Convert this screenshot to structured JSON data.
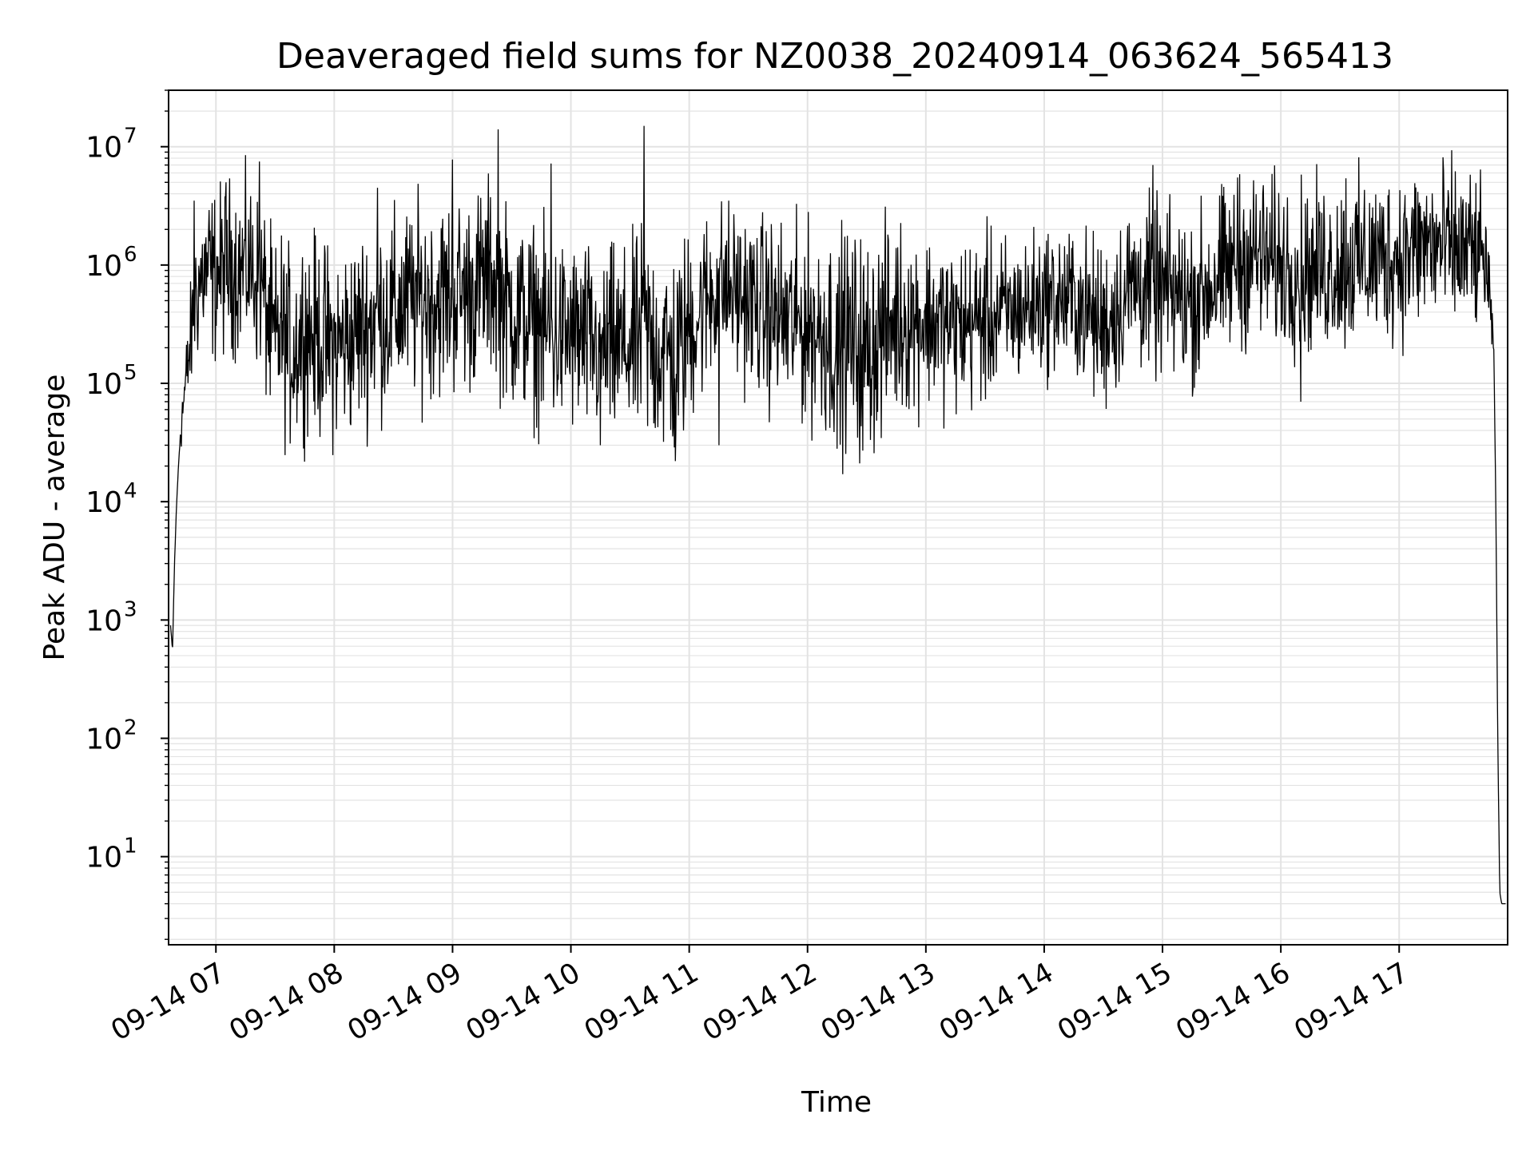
{
  "chart_data": {
    "type": "line",
    "title": "Deaveraged field sums for NZ0038_20240914_063624_565413",
    "xlabel": "Time",
    "ylabel": "Peak ADU - average",
    "yscale": "log",
    "ylim": [
      1.8,
      30000000
    ],
    "xlim": [
      "2024-09-14 06:36",
      "2024-09-14 17:55"
    ],
    "grid": "major and minor",
    "legend": "none",
    "line_color": "#000000",
    "grid_color": "#e3e3e3",
    "x_ticks": [
      {
        "value": "2024-09-14 07:00",
        "label": "09-14 07"
      },
      {
        "value": "2024-09-14 08:00",
        "label": "09-14 08"
      },
      {
        "value": "2024-09-14 09:00",
        "label": "09-14 09"
      },
      {
        "value": "2024-09-14 10:00",
        "label": "09-14 10"
      },
      {
        "value": "2024-09-14 11:00",
        "label": "09-14 11"
      },
      {
        "value": "2024-09-14 12:00",
        "label": "09-14 12"
      },
      {
        "value": "2024-09-14 13:00",
        "label": "09-14 13"
      },
      {
        "value": "2024-09-14 14:00",
        "label": "09-14 14"
      },
      {
        "value": "2024-09-14 15:00",
        "label": "09-14 15"
      },
      {
        "value": "2024-09-14 16:00",
        "label": "09-14 16"
      },
      {
        "value": "2024-09-14 17:00",
        "label": "09-14 17"
      }
    ],
    "y_ticks": [
      {
        "value": 10,
        "base": "10",
        "exp": "1"
      },
      {
        "value": 100,
        "base": "10",
        "exp": "2"
      },
      {
        "value": 1000,
        "base": "10",
        "exp": "3"
      },
      {
        "value": 10000,
        "base": "10",
        "exp": "4"
      },
      {
        "value": 100000,
        "base": "10",
        "exp": "5"
      },
      {
        "value": 1000000,
        "base": "10",
        "exp": "6"
      },
      {
        "value": 10000000,
        "base": "10",
        "exp": "7"
      }
    ],
    "series": [
      {
        "x": [
          "2024-09-14 06:37",
          "2024-09-14 06:38",
          "2024-09-14 06:39",
          "2024-09-14 06:40",
          "2024-09-14 06:41",
          "2024-09-14 06:42",
          "2024-09-14 06:44",
          "2024-09-14 06:46",
          "2024-09-14 06:48",
          "2024-09-14 06:50",
          "2024-09-14 06:53",
          "2024-09-14 06:56",
          "2024-09-14 06:59",
          "2024-09-14 07:03",
          "2024-09-14 07:07",
          "2024-09-14 07:12",
          "2024-09-14 07:16",
          "2024-09-14 07:20",
          "2024-09-14 07:24",
          "2024-09-14 07:27",
          "2024-09-14 07:30",
          "2024-09-14 07:33",
          "2024-09-14 07:36",
          "2024-09-14 07:40",
          "2024-09-14 07:45",
          "2024-09-14 07:50",
          "2024-09-14 08:00",
          "2024-09-14 08:10",
          "2024-09-14 08:20",
          "2024-09-14 08:30",
          "2024-09-14 08:40",
          "2024-09-14 09:00",
          "2024-09-14 09:10",
          "2024-09-14 09:20",
          "2024-09-14 09:23",
          "2024-09-14 09:30",
          "2024-09-14 09:45",
          "2024-09-14 09:50",
          "2024-09-14 10:00",
          "2024-09-14 10:15",
          "2024-09-14 10:30",
          "2024-09-14 10:37",
          "2024-09-14 10:45",
          "2024-09-14 10:53",
          "2024-09-14 11:00",
          "2024-09-14 11:15",
          "2024-09-14 11:30",
          "2024-09-14 11:45",
          "2024-09-14 12:00",
          "2024-09-14 12:15",
          "2024-09-14 12:30",
          "2024-09-14 12:45",
          "2024-09-14 13:00",
          "2024-09-14 13:15",
          "2024-09-14 13:30",
          "2024-09-14 13:45",
          "2024-09-14 14:00",
          "2024-09-14 14:15",
          "2024-09-14 14:30",
          "2024-09-14 14:45",
          "2024-09-14 15:00",
          "2024-09-14 15:15",
          "2024-09-14 15:30",
          "2024-09-14 15:45",
          "2024-09-14 16:00",
          "2024-09-14 16:15",
          "2024-09-14 16:30",
          "2024-09-14 16:45",
          "2024-09-14 17:00",
          "2024-09-14 17:15",
          "2024-09-14 17:30",
          "2024-09-14 17:40",
          "2024-09-14 17:44",
          "2024-09-14 17:46",
          "2024-09-14 17:48",
          "2024-09-14 17:49",
          "2024-09-14 17:50",
          "2024-09-14 17:51",
          "2024-09-14 17:52",
          "2024-09-14 17:54"
        ],
        "y": [
          900,
          550,
          3000,
          9000,
          20000,
          40000,
          80000,
          150000,
          300000,
          600000,
          800000,
          900000,
          800000,
          900000,
          1000000,
          900000,
          1000000,
          800000,
          600000,
          300000,
          200000,
          300000,
          200000,
          200000,
          300000,
          250000,
          200000,
          250000,
          350000,
          400000,
          500000,
          550000,
          600000,
          800000,
          600000,
          400000,
          300000,
          250000,
          250000,
          200000,
          200000,
          250000,
          200000,
          150000,
          300000,
          700000,
          500000,
          350000,
          300000,
          250000,
          200000,
          350000,
          350000,
          300000,
          350000,
          400000,
          500000,
          500000,
          300000,
          700000,
          600000,
          500000,
          800000,
          1200000,
          1000000,
          900000,
          1000000,
          1100000,
          1200000,
          1500000,
          1300000,
          1200000,
          1100000,
          400000,
          200000,
          10000,
          100,
          5,
          4,
          4
        ],
        "noise_dex": [
          0,
          0,
          0,
          0,
          0,
          0.1,
          0.15,
          0.2,
          0.25,
          0.3,
          0.3,
          0.35,
          0.35,
          0.35,
          0.35,
          0.35,
          0.35,
          0.35,
          0.35,
          0.4,
          0.4,
          0.4,
          0.4,
          0.4,
          0.4,
          0.4,
          0.4,
          0.4,
          0.4,
          0.4,
          0.4,
          0.4,
          0.4,
          0.4,
          0.4,
          0.4,
          0.4,
          0.4,
          0.4,
          0.4,
          0.4,
          0.45,
          0.45,
          0.45,
          0.4,
          0.35,
          0.35,
          0.4,
          0.4,
          0.45,
          0.45,
          0.4,
          0.35,
          0.35,
          0.35,
          0.3,
          0.3,
          0.3,
          0.35,
          0.35,
          0.35,
          0.35,
          0.35,
          0.35,
          0.35,
          0.35,
          0.35,
          0.35,
          0.35,
          0.35,
          0.35,
          0.3,
          0.25,
          0.2,
          0,
          0,
          0,
          0,
          0,
          0
        ]
      }
    ],
    "spikes": [
      {
        "x": "2024-09-14 06:49",
        "y": 3500000
      },
      {
        "x": "2024-09-14 07:05",
        "y": 5000000
      },
      {
        "x": "2024-09-14 07:22",
        "y": 7500000
      },
      {
        "x": "2024-09-14 08:22",
        "y": 4500000
      },
      {
        "x": "2024-09-14 09:00",
        "y": 7800000
      },
      {
        "x": "2024-09-14 09:23",
        "y": 14000000
      },
      {
        "x": "2024-09-14 09:50",
        "y": 7200000
      },
      {
        "x": "2024-09-14 10:37",
        "y": 15000000
      },
      {
        "x": "2024-09-14 14:55",
        "y": 7000000
      },
      {
        "x": "2024-09-14 15:38",
        "y": 5500000
      },
      {
        "x": "2024-09-14 16:33",
        "y": 5400000
      },
      {
        "x": "2024-09-14 17:36",
        "y": 5800000
      }
    ],
    "dips": [
      {
        "x": "2024-09-14 10:53",
        "y": 22000
      },
      {
        "x": "2024-09-14 11:15",
        "y": 30000
      },
      {
        "x": "2024-09-14 12:15",
        "y": 28000
      },
      {
        "x": "2024-09-14 12:28",
        "y": 27000
      },
      {
        "x": "2024-09-14 10:15",
        "y": 30000
      },
      {
        "x": "2024-09-14 16:10",
        "y": 70000
      }
    ]
  }
}
